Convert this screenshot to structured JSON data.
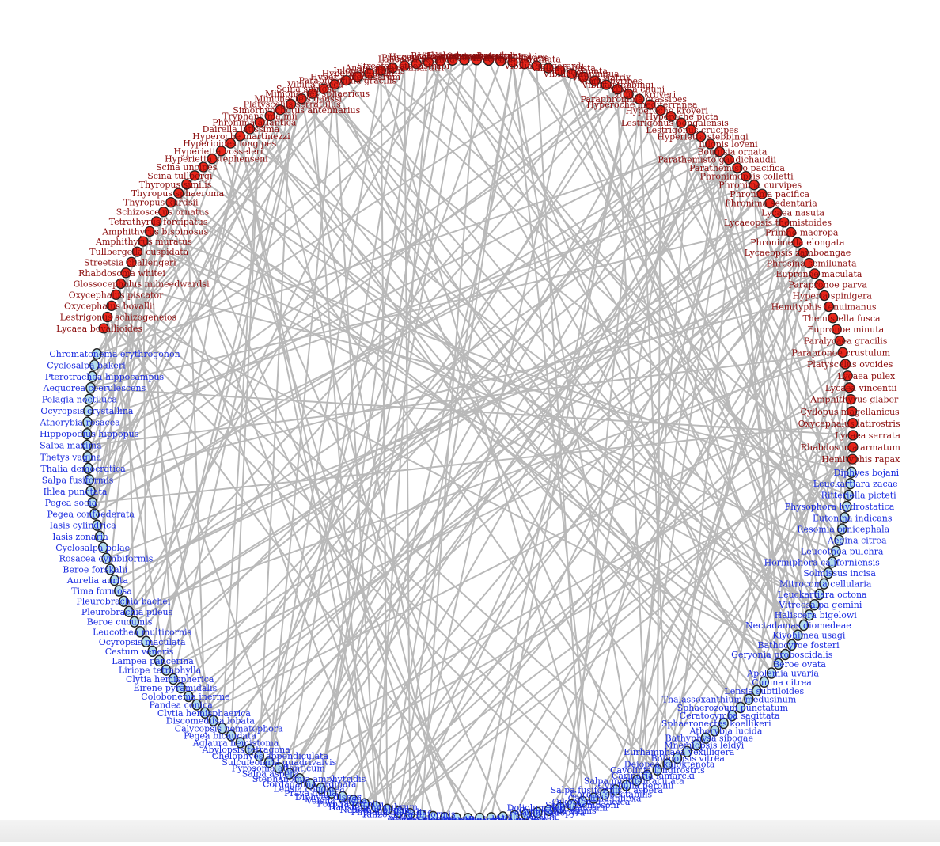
{
  "colors": {
    "predator_node": "#e8261a",
    "predator_label": "#8b0d0d",
    "prey_node": "#b4dcec",
    "prey_label": "#1a2be0",
    "edge": "#b9b9b9"
  },
  "predators": [
    "Lycaea bovallioides",
    "Lestrigonus schizogeneios",
    "Oxycephalus bovallii",
    "Oxycephalus piscator",
    "Glossocephalus milneedwardsi",
    "Rhabdosoma whitei",
    "Streetsia challengeri",
    "Tullbergella cuspidata",
    "Amphithyrus muratus",
    "Amphithyrus bispinosus",
    "Tetrathyrus forcipatus",
    "Schizoscelus ornatus",
    "Thyropus kurdsii",
    "Thyropus sphaeroma",
    "Thyropus similis",
    "Scina tullbergi",
    "Scina uncipes",
    "Hyperietta stephenseni",
    "Hyperietta vosseleri",
    "Hyperioides longipes",
    "Hyperoche martinezzi",
    "Dairella latissima",
    "Phronima atlantica",
    "Tryphana malmii",
    "Simorhynchotus antennarius",
    "Platyscelus serratulus",
    "Mimonecteis gaussi",
    "Mimonectes sphaericus",
    "Scina spinosa",
    "Vibilia caeca",
    "Paraphronima gracilis",
    "Hyperia medusarum",
    "Hyperoche shihi",
    "Iulopis mirabilis",
    "Anapronoe reinhardti",
    "Streetsia steenstrupi",
    "Lanceola pacifica",
    "Proscina stephenseni",
    "Hyperoche medusarum",
    "Vibilia australis",
    "Brachyscelus crusculum",
    "Euthamneus rostratus",
    "Oxycephalus clausi",
    "Parascelus typhoides",
    "Lanceola sayana",
    "Scina marginata",
    "Vibilia gangerardi",
    "Vibilia robusta",
    "Vibilia armata",
    "Vibilia propinqua",
    "Vibilia viatrix",
    "Vibilia pyripes",
    "Vibilia stebbingi",
    "Vibilia chuni",
    "Vibilia kroyeri",
    "Paraphronima crassipes",
    "Hyperoche mediterranea",
    "Hyperoche kroyeri",
    "Hyperoche picta",
    "Lestrigonus bengalensis",
    "Lestrigonus crucipes",
    "Hyperietta stebbingi",
    "Iulopis loveni",
    "Bougisia ornata",
    "Parathemisto gaudichaudii",
    "Parathemisto pacifica",
    "Phronimopsis colletti",
    "Phronima curvipes",
    "Phronima pacifica",
    "Phronima sedentaria",
    "Lycaea nasuta",
    "Lycaeopsis themistoides",
    "Primno macropa",
    "Phronimella elongata",
    "Lycaeopsis zamboangae",
    "Phrosina semilunata",
    "Eupronoe maculata",
    "Parapronoe parva",
    "Hyperia spinigera",
    "Hemityphis tenuimanus",
    "Themistella fusca",
    "Eupronoe minuta",
    "Paralycaea gracilis",
    "Parapronoe crustulum",
    "Platyscelus ovoides",
    "Lycaea pulex",
    "Lycaea vincentii",
    "Amphithyrus glaber",
    "Cyllopus magellanicus",
    "Oxycephalus latirostris",
    "Lycaea serrata",
    "Rhabdosoma armatum",
    "Hemityphis rapax"
  ],
  "prey": [
    "Chromatonema erythrogonon",
    "Cyclosalpa bakeri",
    "Pterotrachea hippocampus",
    "Aequorea coerulescens",
    "Pelagia noctiluca",
    "Ocyropsis crystallina",
    "Athorybia rosacea",
    "Hippopodius hippopus",
    "Salpa maxima",
    "Thetys vagina",
    "Thalia democratica",
    "Salpa fusiformis",
    "Ihlea punctata",
    "Pegea socia",
    "Pegea confoederata",
    "Iasis cylindrica",
    "Iasis zonaria",
    "Cyclosalpa polae",
    "Rosacea cymbiformis",
    "Beroe forskalii",
    "Aurelia aurita",
    "Tima formosa",
    "Pleurobrachia bachei",
    "Pleurobrachia pileus",
    "Beroe cucumis",
    "Leucothea multicornis",
    "Ocyropsis maculata",
    "Cestum veneris",
    "Lampea pancerina",
    "Liriope tetraphylla",
    "Clytia hemispherica",
    "Eirene pyramidalis",
    "Colobonema inerme",
    "Pandea conica",
    "Clytia hemisphaerica",
    "Discomedusa lobata",
    "Calycopsis nematophora",
    "Pegea bicaudata",
    "Aglaura hemistoma",
    "Abylopsis tetragona",
    "Chelophyes appendiculata",
    "Sulculeolaria quadrivalvis",
    "Pyrosoma atlanticum",
    "Salpa aspera",
    "Stephanomia amphytridis",
    "Cordagalma ordinata",
    "Lensia conoidea",
    "Praya dubia",
    "Diphyes dispar",
    "Velella velella",
    "Porpita porpita",
    "Halistemma rubrum",
    "Nanomia bijuga",
    "Physalia physalis",
    "Rhizophysa filiformis",
    "Agalma elegans",
    "Forskalia edwardsi",
    "Muggiaea atlantica",
    "Stephanomia japonica",
    "Craseoa lathetica",
    "Cyanea capillata",
    "Chrysaora hysoscella",
    "Rhizostoma pulmo",
    "Periphylla periphylla",
    "Atolla wyvillei",
    "Pelagia panopyra",
    "Cyclosalpa affinis",
    "Doliolum denticulatum",
    "Salpa thompsoni",
    "Oikopleura dioica",
    "Cavolinia inflexa",
    "Corolla spectabilis",
    "Salpa fusiformis f. aspera",
    "Cymbulia peronii",
    "Salpa multitentaculata",
    "Carinaria lamarcki",
    "Cavolinia longirostris",
    "Deiopea kaloktenota",
    "Bolinopsis vitrea",
    "Eurhamphaea vexilligera",
    "Mnemiopsis leidyi",
    "Bathyphysa sibogae",
    "Athorybia lucida",
    "Sphaeronectes koellikeri",
    "Ceratocymba sagittata",
    "Sphaerozoum punctatum",
    "Thalassoxanthium medusinum",
    "Lensia subtiloides",
    "Cunina citrea",
    "Apolemia uvaria",
    "Beroe ovata",
    "Geryonia proboscidalis",
    "Bathocyroe fosteri",
    "Kiyohimea usagi",
    "Nectadamas diomedeae",
    "Haliscera bigelowi",
    "Vitreosalpa gemini",
    "Leuckartiara octona",
    "Mitrocoma cellularia",
    "Solmissus incisa",
    "Hormiphora californiensis",
    "Leucothea pulchra",
    "Aegina citrea",
    "Resomia ornicephala",
    "Eutonina indicans",
    "Physophora hydrostatica",
    "Ritteriella picteti",
    "Leuckartiara zacae",
    "Diphyes bojani"
  ]
}
